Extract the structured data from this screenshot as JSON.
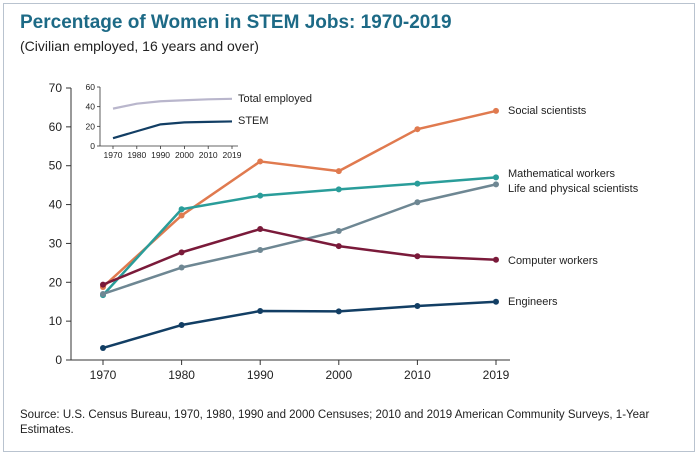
{
  "header": {
    "title": "Percentage of Women in STEM Jobs: 1970-2019",
    "subtitle": "(Civilian employed, 16 years and over)"
  },
  "footer": {
    "source": "Source: U.S. Census Bureau, 1970, 1980, 1990 and 2000 Censuses; 2010 and 2019 American Community Surveys, 1-Year Estimates."
  },
  "chart_data": [
    {
      "type": "line",
      "title": "Percentage of Women in STEM Jobs: 1970-2019",
      "subtitle": "(Civilian employed, 16 years and over)",
      "xlabel": "",
      "ylabel": "",
      "categories": [
        "1970",
        "1980",
        "1990",
        "2000",
        "2010",
        "2019"
      ],
      "ylim": [
        0,
        70
      ],
      "yticks": [
        0,
        10,
        20,
        30,
        40,
        50,
        60,
        70
      ],
      "grid": false,
      "legend": "direct labels at right end of lines",
      "series": [
        {
          "name": "Social scientists",
          "color": "#e07a4f",
          "values": [
            18.8,
            37.2,
            51.1,
            48.6,
            59.4,
            64.1
          ]
        },
        {
          "name": "Mathematical workers",
          "color": "#2a9d9a",
          "values": [
            16.7,
            38.8,
            42.3,
            43.9,
            45.4,
            47.0
          ]
        },
        {
          "name": "Life and physical scientists",
          "color": "#6e8793",
          "values": [
            17.0,
            23.8,
            28.3,
            33.2,
            40.6,
            45.2
          ]
        },
        {
          "name": "Computer workers",
          "color": "#7a1a3a",
          "values": [
            19.4,
            27.7,
            33.7,
            29.3,
            26.7,
            25.8
          ]
        },
        {
          "name": "Engineers",
          "color": "#123e64",
          "values": [
            3.1,
            9.0,
            12.6,
            12.5,
            13.9,
            15.0
          ]
        }
      ]
    },
    {
      "type": "line",
      "title": "",
      "categories": [
        "1970",
        "1980",
        "1990",
        "2000",
        "2010",
        "2019"
      ],
      "ylim": [
        0,
        60
      ],
      "yticks": [
        0,
        20,
        40,
        60
      ],
      "grid": false,
      "legend": "direct labels at right end of lines",
      "series": [
        {
          "name": "Total employed",
          "color": "#b9b6cc",
          "values": [
            38,
            43,
            45.5,
            46.5,
            47.5,
            48
          ]
        },
        {
          "name": "STEM",
          "color": "#123e64",
          "values": [
            8,
            15,
            22,
            24,
            24.5,
            25
          ]
        }
      ]
    }
  ]
}
